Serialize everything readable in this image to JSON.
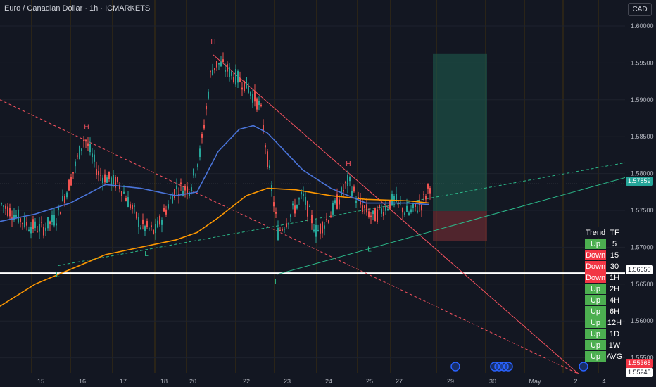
{
  "header": {
    "title": "Euro / Canadian Dollar · 1h · ICMARKETS",
    "currency_button": "CAD"
  },
  "price_axis": {
    "ticks": [
      "1.60000",
      "1.59500",
      "1.59000",
      "1.58500",
      "1.58000",
      "1.57500",
      "1.57000",
      "1.56500",
      "1.56000",
      "1.55500"
    ],
    "current_price": "1.57859",
    "level_price": "1.56650",
    "low_price_1": "1.55368",
    "low_price_2": "1.55245"
  },
  "time_axis": {
    "labels": [
      "15",
      "16",
      "17",
      "18",
      "20",
      "22",
      "23",
      "24",
      "25",
      "27",
      "29",
      "30",
      "May",
      "2",
      "4"
    ]
  },
  "trend_table": {
    "header": {
      "trend": "Trend",
      "tf": "TF"
    },
    "rows": [
      {
        "trend": "Up",
        "tf": "5"
      },
      {
        "trend": "Down",
        "tf": "15"
      },
      {
        "trend": "Down",
        "tf": "30"
      },
      {
        "trend": "Down",
        "tf": "1H"
      },
      {
        "trend": "Up",
        "tf": "2H"
      },
      {
        "trend": "Up",
        "tf": "4H"
      },
      {
        "trend": "Up",
        "tf": "6H"
      },
      {
        "trend": "Up",
        "tf": "12H"
      },
      {
        "trend": "Up",
        "tf": "1D"
      },
      {
        "trend": "Up",
        "tf": "1W"
      },
      {
        "trend": "Up",
        "tf": "AVG"
      }
    ]
  },
  "annotations": {
    "high_1": "H",
    "high_2": "H",
    "high_3": "H",
    "low_1": "L",
    "low_2": "L",
    "low_3": "L",
    "low_4": "L"
  },
  "colors": {
    "up": "#26a69a",
    "down": "#ef5350",
    "background": "#131722",
    "ema_blue": "#4a74d9",
    "ema_orange": "#ff9800",
    "trendline_red": "#f7525f",
    "trendline_green": "#2bb98a"
  },
  "chart_data": {
    "type": "candlestick",
    "symbol": "EUR/CAD",
    "ylim": [
      1.5515,
      1.603
    ],
    "y_ticks": [
      1.6,
      1.595,
      1.59,
      1.585,
      1.58,
      1.575,
      1.57,
      1.565,
      1.56,
      1.555
    ],
    "x_labels": [
      "15",
      "16",
      "17",
      "18",
      "20",
      "22",
      "23",
      "24",
      "25",
      "27",
      "29",
      "30",
      "May",
      "2",
      "4"
    ],
    "current_price": 1.57859,
    "horizontal_level": 1.5665,
    "blue_ma_path": [
      [
        0,
        1.5735
      ],
      [
        50,
        1.5745
      ],
      [
        100,
        1.576
      ],
      [
        150,
        1.5785
      ],
      [
        200,
        1.578
      ],
      [
        250,
        1.577
      ],
      [
        280,
        1.5775
      ],
      [
        310,
        1.583
      ],
      [
        340,
        1.586
      ],
      [
        360,
        1.5865
      ],
      [
        380,
        1.5855
      ],
      [
        400,
        1.5835
      ],
      [
        430,
        1.5805
      ],
      [
        470,
        1.578
      ],
      [
        520,
        1.576
      ],
      [
        580,
        1.576
      ],
      [
        610,
        1.5758
      ]
    ],
    "orange_ma_path": [
      [
        0,
        1.562
      ],
      [
        50,
        1.565
      ],
      [
        100,
        1.567
      ],
      [
        150,
        1.569
      ],
      [
        200,
        1.57
      ],
      [
        250,
        1.571
      ],
      [
        280,
        1.572
      ],
      [
        310,
        1.574
      ],
      [
        350,
        1.577
      ],
      [
        380,
        1.578
      ],
      [
        420,
        1.5778
      ],
      [
        470,
        1.577
      ],
      [
        520,
        1.5765
      ],
      [
        580,
        1.5763
      ],
      [
        610,
        1.576
      ]
    ],
    "price_path": [
      [
        0,
        1.576
      ],
      [
        40,
        1.573
      ],
      [
        60,
        1.5725
      ],
      [
        80,
        1.574
      ],
      [
        100,
        1.579
      ],
      [
        120,
        1.585
      ],
      [
        140,
        1.58
      ],
      [
        170,
        1.5785
      ],
      [
        200,
        1.573
      ],
      [
        220,
        1.572
      ],
      [
        250,
        1.578
      ],
      [
        270,
        1.578
      ],
      [
        285,
        1.583
      ],
      [
        300,
        1.594
      ],
      [
        310,
        1.595
      ],
      [
        330,
        1.5935
      ],
      [
        350,
        1.592
      ],
      [
        370,
        1.589
      ],
      [
        380,
        1.582
      ],
      [
        395,
        1.572
      ],
      [
        410,
        1.574
      ],
      [
        430,
        1.577
      ],
      [
        450,
        1.572
      ],
      [
        470,
        1.5745
      ],
      [
        495,
        1.579
      ],
      [
        510,
        1.576
      ],
      [
        530,
        1.574
      ],
      [
        560,
        1.5765
      ],
      [
        580,
        1.5745
      ],
      [
        600,
        1.576
      ],
      [
        612,
        1.5786
      ]
    ],
    "trendlines": [
      {
        "color": "red",
        "style": "solid",
        "from": [
          303,
          1.5961
        ],
        "to": [
          832,
          1.552
        ]
      },
      {
        "color": "red",
        "style": "dashed",
        "from": [
          0,
          1.59
        ],
        "to": [
          840,
          1.552
        ]
      },
      {
        "color": "green",
        "style": "solid",
        "from": [
          393,
          1.5663
        ],
        "to": [
          890,
          1.5795
        ]
      },
      {
        "color": "green",
        "style": "dashed",
        "from": [
          82,
          1.5675
        ],
        "to": [
          890,
          1.5815
        ]
      }
    ],
    "position_box": {
      "entry": 1.5749,
      "target": 1.5962,
      "stop": 1.5708,
      "x_start": 615,
      "x_end": 692
    },
    "labels": [
      {
        "text": "H",
        "x": 123,
        "price": 1.586
      },
      {
        "text": "H",
        "x": 303,
        "price": 1.5975
      },
      {
        "text": "H",
        "x": 495,
        "price": 1.581
      },
      {
        "text": "L",
        "x": 82,
        "price": 1.566
      },
      {
        "text": "L",
        "x": 208,
        "price": 1.5688
      },
      {
        "text": "L",
        "x": 393,
        "price": 1.565
      },
      {
        "text": "L",
        "x": 525,
        "price": 1.5694
      }
    ]
  }
}
